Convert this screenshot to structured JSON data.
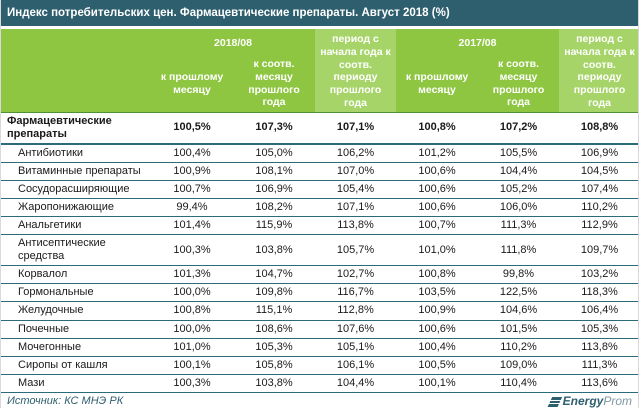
{
  "title": "Индекс потребительских цен. Фармацевтические препараты. Август 2018 (%)",
  "colors": {
    "title_bg": "#2E5F6E",
    "header_green": "#8EC641",
    "header_green_light": "#A6D468",
    "row_line_teal": "#2B6B7C",
    "bottom_bar": "#2E5F6E"
  },
  "chart_data": {
    "type": "table",
    "title": "Индекс потребительских цен. Фармацевтические препараты. Август 2018 (%)",
    "header": {
      "group_2018": "2018/08",
      "group_2017": "2017/08",
      "sub_prev_month": "к прошлому месяцу",
      "sub_same_month_prev_year": "к соотв. месяцу прошлого года",
      "period_from_year_start": "период с начала года к соотв. периоду прошлого года"
    },
    "columns": [
      "2018/08 к прошлому месяцу",
      "2018/08 к соотв. месяцу прошлого года",
      "период с начала года к соотв. периоду прошлого года",
      "2017/08 к прошлому месяцу",
      "2017/08 к соотв. месяцу прошлого года",
      "период с начала года к соотв. периоду прошлого года"
    ],
    "rows": [
      {
        "label": "Фармацевтические препараты",
        "bold": true,
        "values": [
          "100,5%",
          "107,3%",
          "107,1%",
          "100,8%",
          "107,2%",
          "108,8%"
        ]
      },
      {
        "label": "Антибиотики",
        "bold": false,
        "values": [
          "100,4%",
          "105,0%",
          "106,2%",
          "101,2%",
          "105,5%",
          "106,9%"
        ]
      },
      {
        "label": "Витаминные препараты",
        "bold": false,
        "values": [
          "100,9%",
          "108,1%",
          "107,0%",
          "100,6%",
          "104,4%",
          "104,5%"
        ]
      },
      {
        "label": "Сосудорасширяющие",
        "bold": false,
        "values": [
          "100,7%",
          "106,9%",
          "105,4%",
          "100,6%",
          "105,2%",
          "107,4%"
        ]
      },
      {
        "label": "Жаропонижающие",
        "bold": false,
        "values": [
          "99,4%",
          "108,2%",
          "107,1%",
          "100,6%",
          "106,0%",
          "110,2%"
        ]
      },
      {
        "label": "Анальгетики",
        "bold": false,
        "values": [
          "101,4%",
          "115,9%",
          "113,8%",
          "100,7%",
          "111,3%",
          "112,9%"
        ]
      },
      {
        "label": "Антисептические средства",
        "bold": false,
        "values": [
          "100,3%",
          "103,8%",
          "105,7%",
          "101,0%",
          "111,8%",
          "109,7%"
        ]
      },
      {
        "label": "Корвалол",
        "bold": false,
        "values": [
          "101,3%",
          "104,7%",
          "102,7%",
          "100,8%",
          "99,8%",
          "103,2%"
        ]
      },
      {
        "label": "Гормональные",
        "bold": false,
        "values": [
          "100,0%",
          "109,8%",
          "116,7%",
          "103,5%",
          "122,5%",
          "118,3%"
        ]
      },
      {
        "label": "Желудочные",
        "bold": false,
        "values": [
          "100,8%",
          "115,1%",
          "112,8%",
          "100,9%",
          "104,6%",
          "106,4%"
        ]
      },
      {
        "label": "Почечные",
        "bold": false,
        "values": [
          "100,0%",
          "108,6%",
          "107,6%",
          "100,6%",
          "101,5%",
          "105,3%"
        ]
      },
      {
        "label": "Мочегонные",
        "bold": false,
        "values": [
          "101,0%",
          "105,3%",
          "105,1%",
          "100,4%",
          "110,2%",
          "113,8%"
        ]
      },
      {
        "label": "Сиропы от кашля",
        "bold": false,
        "values": [
          "100,1%",
          "105,8%",
          "106,1%",
          "100,5%",
          "109,0%",
          "111,3%"
        ]
      },
      {
        "label": "Мази",
        "bold": false,
        "values": [
          "100,3%",
          "103,8%",
          "104,4%",
          "100,1%",
          "110,4%",
          "113,6%"
        ]
      }
    ]
  },
  "footer": {
    "source": "Источник: КС МНЭ РК",
    "logo_energy": "Energy",
    "logo_prom": "Prom"
  }
}
